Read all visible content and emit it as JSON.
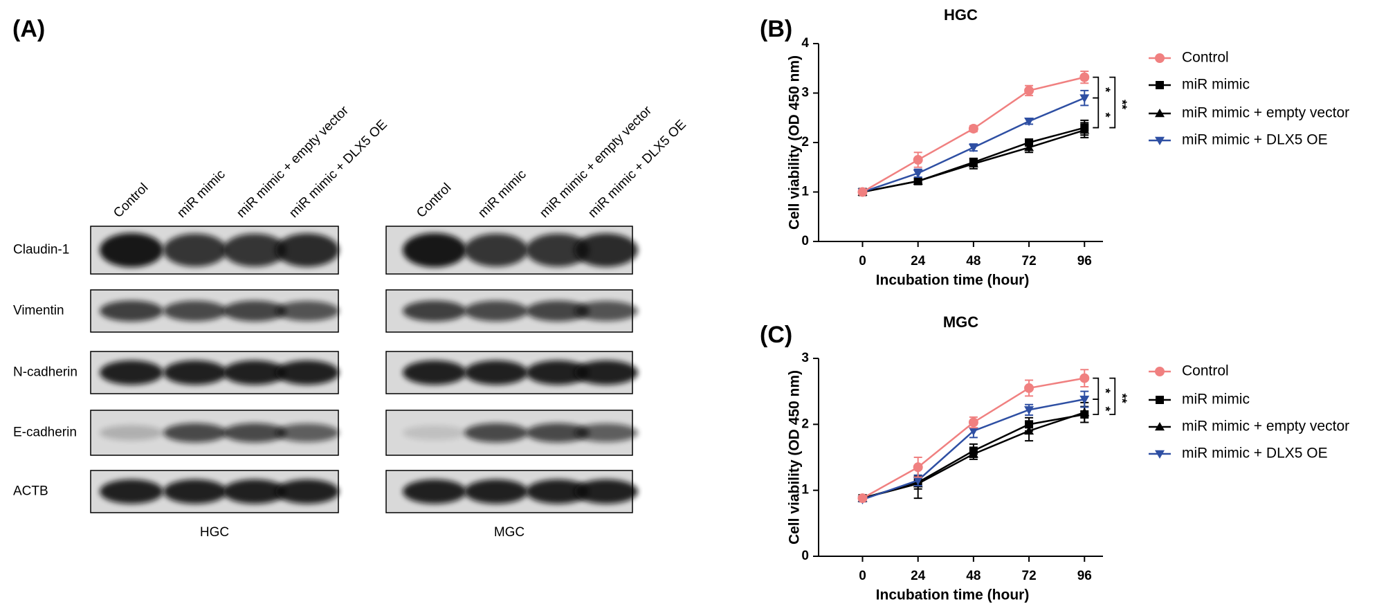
{
  "panel_a": {
    "label": "(A)",
    "rows": [
      "Claudin-1",
      "Vimentin",
      "N-cadherin",
      "E-cadherin",
      "ACTB"
    ],
    "blots": [
      {
        "lanes": [
          "Control",
          "miR mimic",
          "miR mimic + empty vector",
          "miR mimic + DLX5 OE"
        ],
        "cell_line": "HGC"
      },
      {
        "lanes": [
          "Control",
          "miR mimic",
          "miR mimic + empty vector",
          "miR mimic + DLX5 OE"
        ],
        "cell_line": "MGC"
      }
    ]
  },
  "chart_data": [
    {
      "type": "line",
      "panel_label": "(B)",
      "title": "HGC",
      "x_label": "Incubation time (hour)",
      "y_label": "Cell viability (OD 450 nm)",
      "x": [
        0,
        24,
        48,
        72,
        96
      ],
      "xlim": [
        -19,
        104
      ],
      "xticks": [
        0,
        24,
        48,
        72,
        96
      ],
      "ylim": [
        0,
        4
      ],
      "yticks": [
        0,
        1,
        2,
        3,
        4
      ],
      "series": [
        {
          "name": "Control",
          "color": "#f08080",
          "marker": "circle",
          "values": [
            1.0,
            1.65,
            2.28,
            3.05,
            3.32
          ],
          "errors": [
            0.04,
            0.15,
            0.06,
            0.1,
            0.12
          ]
        },
        {
          "name": "miR mimic",
          "color": "#000000",
          "marker": "square",
          "values": [
            1.0,
            1.22,
            1.6,
            2.0,
            2.3
          ],
          "errors": [
            0.03,
            0.05,
            0.08,
            0.06,
            0.15
          ]
        },
        {
          "name": "miR mimic + empty vector",
          "color": "#000000",
          "marker": "triangle-up",
          "values": [
            1.0,
            1.22,
            1.57,
            1.9,
            2.25
          ],
          "errors": [
            0.03,
            0.05,
            0.1,
            0.1,
            0.15
          ]
        },
        {
          "name": "miR mimic + DLX5 OE",
          "color": "#2e4fa3",
          "marker": "triangle-down",
          "values": [
            1.0,
            1.38,
            1.9,
            2.43,
            2.9
          ],
          "errors": [
            0.03,
            0.08,
            0.07,
            0.06,
            0.15
          ]
        }
      ],
      "significance": [
        "*",
        "*",
        "**"
      ]
    },
    {
      "type": "line",
      "panel_label": "(C)",
      "title": "MGC",
      "x_label": "Incubation time (hour)",
      "y_label": "Cell viability (OD 450 nm)",
      "x": [
        0,
        24,
        48,
        72,
        96
      ],
      "xlim": [
        -19,
        104
      ],
      "xticks": [
        0,
        24,
        48,
        72,
        96
      ],
      "ylim": [
        0,
        3
      ],
      "yticks": [
        0,
        1,
        2,
        3
      ],
      "series": [
        {
          "name": "Control",
          "color": "#f08080",
          "marker": "circle",
          "values": [
            0.88,
            1.35,
            2.03,
            2.55,
            2.7
          ],
          "errors": [
            0.03,
            0.15,
            0.08,
            0.12,
            0.13
          ]
        },
        {
          "name": "miR mimic",
          "color": "#000000",
          "marker": "square",
          "values": [
            0.88,
            1.12,
            1.6,
            2.0,
            2.15
          ],
          "errors": [
            0.03,
            0.1,
            0.1,
            0.1,
            0.12
          ]
        },
        {
          "name": "miR mimic + empty vector",
          "color": "#000000",
          "marker": "triangle-up",
          "values": [
            0.88,
            1.1,
            1.55,
            1.9,
            2.18
          ],
          "errors": [
            0.03,
            0.22,
            0.08,
            0.15,
            0.15
          ]
        },
        {
          "name": "miR mimic + DLX5 OE",
          "color": "#2e4fa3",
          "marker": "triangle-down",
          "values": [
            0.86,
            1.15,
            1.9,
            2.22,
            2.38
          ],
          "errors": [
            0.03,
            0.08,
            0.1,
            0.08,
            0.12
          ]
        }
      ],
      "significance": [
        "*",
        "*",
        "**"
      ]
    }
  ]
}
